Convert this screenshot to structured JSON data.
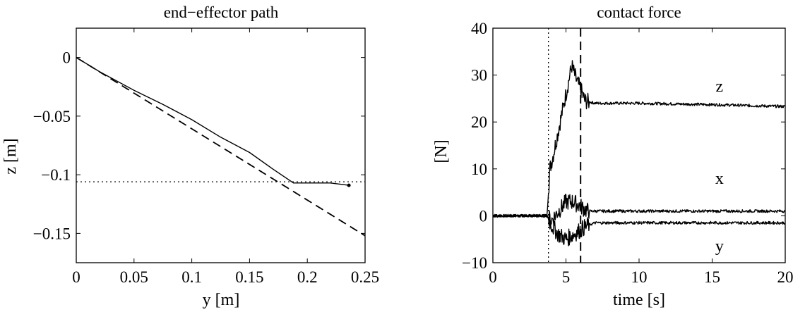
{
  "chart_data": [
    {
      "type": "line",
      "title": "end−effector path",
      "xlabel": "y [m]",
      "ylabel": "z [m]",
      "xlim": [
        0,
        0.25
      ],
      "ylim": [
        -0.175,
        0.025
      ],
      "xticks": [
        0,
        0.05,
        0.1,
        0.15,
        0.2,
        0.25
      ],
      "xtick_labels": [
        "0",
        "0.05",
        "0.1",
        "0.15",
        "0.2",
        "0.25"
      ],
      "yticks": [
        0,
        -0.05,
        -0.1,
        -0.15
      ],
      "ytick_labels": [
        "0",
        "−0.05",
        "−0.1",
        "−0.15"
      ],
      "grid": false,
      "series": [
        {
          "style": "solid",
          "x": [
            0,
            0.02,
            0.05,
            0.075,
            0.1,
            0.125,
            0.15,
            0.17,
            0.188,
            0.2,
            0.22,
            0.236
          ],
          "y": [
            0,
            -0.012,
            -0.028,
            -0.04,
            -0.053,
            -0.068,
            -0.081,
            -0.095,
            -0.107,
            -0.107,
            -0.107,
            -0.109
          ]
        },
        {
          "style": "dashed",
          "x": [
            0,
            0.25
          ],
          "y": [
            0,
            -0.152
          ]
        },
        {
          "style": "dotted",
          "x": [
            0,
            0.25
          ],
          "y": [
            -0.106,
            -0.106
          ]
        }
      ]
    },
    {
      "type": "line",
      "title": "contact force",
      "xlabel": "time [s]",
      "ylabel": "[N]",
      "xlim": [
        0,
        20
      ],
      "ylim": [
        -10,
        40
      ],
      "xticks": [
        0,
        5,
        10,
        15,
        20
      ],
      "xtick_labels": [
        "0",
        "5",
        "10",
        "15",
        "20"
      ],
      "yticks": [
        -10,
        0,
        10,
        20,
        30,
        40
      ],
      "ytick_labels": [
        "−10",
        "0",
        "10",
        "20",
        "30",
        "40"
      ],
      "grid": false,
      "vlines": [
        {
          "x": 3.8,
          "style": "dotted"
        },
        {
          "x": 6.0,
          "style": "dashed"
        }
      ],
      "series": [
        {
          "name": "z",
          "x": [
            0,
            3.7,
            3.9,
            4.2,
            4.6,
            5.0,
            5.4,
            5.7,
            6.0,
            6.3,
            7.0,
            10,
            15,
            20
          ],
          "y": [
            0,
            0,
            10,
            14,
            20,
            26,
            32,
            29,
            27,
            24.5,
            24,
            24,
            23.7,
            23.3
          ]
        },
        {
          "name": "x",
          "x": [
            0,
            3.7,
            4.0,
            4.5,
            5.0,
            5.5,
            6.0,
            6.5,
            7.0,
            10,
            15,
            20
          ],
          "y": [
            0,
            0,
            -1,
            1,
            3,
            3,
            2,
            1,
            1,
            1,
            1,
            1
          ]
        },
        {
          "name": "y",
          "x": [
            0,
            3.7,
            4.0,
            4.5,
            5.0,
            5.5,
            6.0,
            6.5,
            7.0,
            10,
            15,
            20
          ],
          "y": [
            0,
            0,
            -2,
            -4,
            -5,
            -4,
            -3,
            -2,
            -1.5,
            -1.5,
            -1.5,
            -1.5
          ]
        }
      ]
    }
  ]
}
